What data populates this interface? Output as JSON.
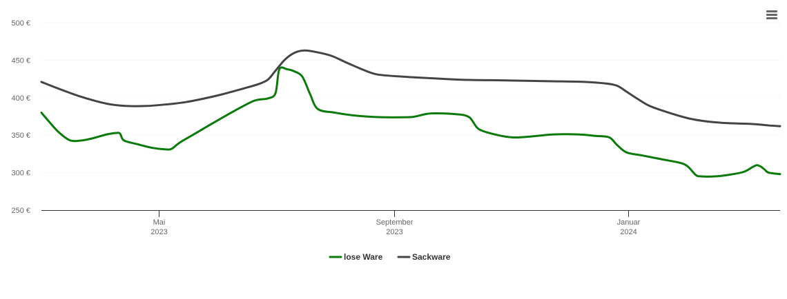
{
  "chart_data": {
    "type": "line",
    "title": "",
    "xlabel": "",
    "ylabel": "",
    "x_range": [
      "2023-03-01",
      "2024-03-20"
    ],
    "ylim": [
      250,
      500
    ],
    "y_ticks": [
      {
        "value": 250,
        "label": "250 €"
      },
      {
        "value": 300,
        "label": "300 €"
      },
      {
        "value": 350,
        "label": "350 €"
      },
      {
        "value": 400,
        "label": "400 €"
      },
      {
        "value": 450,
        "label": "450 €"
      },
      {
        "value": 500,
        "label": "500 €"
      }
    ],
    "x_ticks": [
      {
        "date": "2023-05-01",
        "line1": "Mai",
        "line2": "2023"
      },
      {
        "date": "2023-09-01",
        "line1": "September",
        "line2": "2023"
      },
      {
        "date": "2024-01-01",
        "line1": "Januar",
        "line2": "2024"
      }
    ],
    "grid": "horizontal",
    "legend_position": "bottom-center",
    "series": [
      {
        "name": "lose Ware",
        "color": "#0a7a0a",
        "points": [
          [
            "2023-03-01",
            380
          ],
          [
            "2023-03-05",
            368
          ],
          [
            "2023-03-10",
            354
          ],
          [
            "2023-03-16",
            343
          ],
          [
            "2023-03-22",
            343
          ],
          [
            "2023-03-28",
            346
          ],
          [
            "2023-04-04",
            351
          ],
          [
            "2023-04-09",
            353
          ],
          [
            "2023-04-11",
            352
          ],
          [
            "2023-04-13",
            343
          ],
          [
            "2023-04-20",
            338
          ],
          [
            "2023-04-28",
            333
          ],
          [
            "2023-05-05",
            331
          ],
          [
            "2023-05-08",
            332
          ],
          [
            "2023-05-12",
            340
          ],
          [
            "2023-05-20",
            352
          ],
          [
            "2023-05-30",
            367
          ],
          [
            "2023-06-10",
            383
          ],
          [
            "2023-06-20",
            396
          ],
          [
            "2023-06-27",
            399
          ],
          [
            "2023-07-01",
            406
          ],
          [
            "2023-07-03",
            438
          ],
          [
            "2023-07-07",
            438
          ],
          [
            "2023-07-11",
            435
          ],
          [
            "2023-07-15",
            428
          ],
          [
            "2023-07-19",
            405
          ],
          [
            "2023-07-23",
            385
          ],
          [
            "2023-08-01",
            380
          ],
          [
            "2023-08-12",
            376
          ],
          [
            "2023-08-25",
            374
          ],
          [
            "2023-09-08",
            374
          ],
          [
            "2023-09-12",
            375
          ],
          [
            "2023-09-20",
            379
          ],
          [
            "2023-10-03",
            378
          ],
          [
            "2023-10-10",
            374
          ],
          [
            "2023-10-15",
            358
          ],
          [
            "2023-10-25",
            350
          ],
          [
            "2023-11-02",
            347
          ],
          [
            "2023-11-10",
            348
          ],
          [
            "2023-11-23",
            351
          ],
          [
            "2023-12-06",
            351
          ],
          [
            "2023-12-15",
            349
          ],
          [
            "2023-12-22",
            347
          ],
          [
            "2023-12-26",
            337
          ],
          [
            "2023-12-31",
            327
          ],
          [
            "2024-01-08",
            323
          ],
          [
            "2024-01-18",
            318
          ],
          [
            "2024-01-28",
            313
          ],
          [
            "2024-02-01",
            308
          ],
          [
            "2024-02-05",
            297
          ],
          [
            "2024-02-08",
            295
          ],
          [
            "2024-02-15",
            295
          ],
          [
            "2024-02-22",
            297
          ],
          [
            "2024-03-01",
            301
          ],
          [
            "2024-03-06",
            308
          ],
          [
            "2024-03-08",
            310
          ],
          [
            "2024-03-10",
            308
          ],
          [
            "2024-03-12",
            304
          ],
          [
            "2024-03-14",
            300
          ],
          [
            "2024-03-20",
            298
          ]
        ]
      },
      {
        "name": "Sackware",
        "color": "#434348",
        "points": [
          [
            "2023-03-01",
            421
          ],
          [
            "2023-03-10",
            412
          ],
          [
            "2023-03-22",
            401
          ],
          [
            "2023-04-04",
            392
          ],
          [
            "2023-04-14",
            389
          ],
          [
            "2023-04-25",
            389
          ],
          [
            "2023-05-05",
            391
          ],
          [
            "2023-05-15",
            394
          ],
          [
            "2023-05-25",
            399
          ],
          [
            "2023-06-04",
            405
          ],
          [
            "2023-06-14",
            412
          ],
          [
            "2023-06-22",
            418
          ],
          [
            "2023-06-27",
            424
          ],
          [
            "2023-07-01",
            436
          ],
          [
            "2023-07-06",
            451
          ],
          [
            "2023-07-11",
            460
          ],
          [
            "2023-07-16",
            463
          ],
          [
            "2023-07-22",
            461
          ],
          [
            "2023-07-30",
            456
          ],
          [
            "2023-08-06",
            448
          ],
          [
            "2023-08-15",
            438
          ],
          [
            "2023-08-23",
            431
          ],
          [
            "2023-09-06",
            428
          ],
          [
            "2023-09-20",
            426
          ],
          [
            "2023-10-06",
            424
          ],
          [
            "2023-10-30",
            423
          ],
          [
            "2023-11-20",
            422
          ],
          [
            "2023-12-10",
            421
          ],
          [
            "2023-12-20",
            419
          ],
          [
            "2023-12-26",
            416
          ],
          [
            "2023-12-31",
            408
          ],
          [
            "2024-01-06",
            398
          ],
          [
            "2024-01-12",
            389
          ],
          [
            "2024-01-22",
            380
          ],
          [
            "2024-02-02",
            372
          ],
          [
            "2024-02-12",
            368
          ],
          [
            "2024-02-22",
            366
          ],
          [
            "2024-03-05",
            365
          ],
          [
            "2024-03-14",
            363
          ],
          [
            "2024-03-20",
            362
          ]
        ]
      }
    ]
  },
  "toolbar": {
    "menu_icon": "hamburger-menu-icon"
  }
}
